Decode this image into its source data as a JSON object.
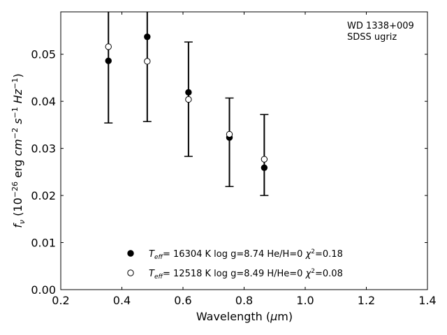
{
  "chart_data": {
    "type": "scatter",
    "title": "",
    "xlabel_parts": {
      "text": "Wavelength (",
      "mu": "μ",
      "unit_tail": "m)"
    },
    "ylabel_parts": {
      "f": "f",
      "nu": "ν",
      "open": " (10",
      "exp_m26": "−26",
      "erg": " erg ",
      "cm": "cm",
      "exp_m2": "−2",
      "s": " s",
      "exp_m1": "−1",
      "hz": " Hz",
      "close": ")"
    },
    "xlim": [
      0.2,
      1.4
    ],
    "ylim": [
      0.0,
      0.059
    ],
    "x_ticks": [
      0.2,
      0.4,
      0.6,
      0.8,
      1.0,
      1.2,
      1.4
    ],
    "x_tick_labels": [
      "0.2",
      "0.4",
      "0.6",
      "0.8",
      "1.0",
      "1.2",
      "1.4"
    ],
    "y_ticks": [
      0.0,
      0.01,
      0.02,
      0.03,
      0.04,
      0.05
    ],
    "y_tick_labels": [
      "0.00",
      "0.01",
      "0.02",
      "0.03",
      "0.04",
      "0.05"
    ],
    "grid": false,
    "annotation": {
      "line1": "WD 1338+009",
      "line2": "SDSS ugriz"
    },
    "observed": {
      "x": [
        0.356,
        0.483,
        0.618,
        0.752,
        0.866
      ],
      "y_low": [
        0.0354,
        0.0357,
        0.0283,
        0.0219,
        0.02
      ],
      "y_high": [
        0.062,
        0.062,
        0.0526,
        0.0407,
        0.0372
      ]
    },
    "series": [
      {
        "marker": "filled",
        "legend": {
          "T": "T",
          "eff": "eff",
          "text1": "= 16304 K  log g=8.74  He/H=0  ",
          "chi": "χ",
          "sq": "2",
          "text2": "=0.18"
        },
        "x": [
          0.356,
          0.483,
          0.618,
          0.752,
          0.866
        ],
        "y": [
          0.0486,
          0.0537,
          0.0419,
          0.0323,
          0.0259
        ]
      },
      {
        "marker": "open",
        "legend": {
          "T": "T",
          "eff": "eff",
          "text1": "= 12518 K  log g=8.49  H/He=0  ",
          "chi": "χ",
          "sq": "2",
          "text2": "=0.08"
        },
        "x": [
          0.356,
          0.483,
          0.618,
          0.752,
          0.866
        ],
        "y": [
          0.0516,
          0.0485,
          0.0404,
          0.033,
          0.0277
        ]
      }
    ],
    "legend_position": "bottom-center"
  }
}
